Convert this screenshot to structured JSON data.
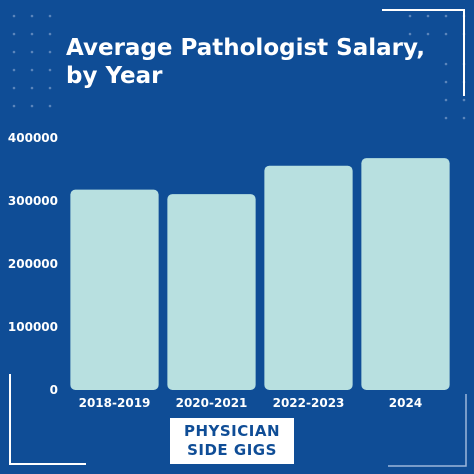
{
  "title": "Average Pathologist Salary, by Year",
  "logo": {
    "line1": "PHYSICIAN",
    "line2": "SIDE GIGS"
  },
  "colors": {
    "background": "#0f4d96",
    "bar": "#b8e0e0",
    "text": "#ffffff",
    "decor": "#6f93c4"
  },
  "chart_data": {
    "type": "bar",
    "title": "Average Pathologist Salary, by Year",
    "categories": [
      "2018-2019",
      "2020-2021",
      "2022-2023",
      "2024"
    ],
    "values": [
      318000,
      311000,
      356000,
      368000
    ],
    "ylim": [
      0,
      400000
    ],
    "yticks": [
      0,
      100000,
      200000,
      300000,
      400000
    ],
    "ytick_labels": [
      "0",
      "100000",
      "200000",
      "300000",
      "400000"
    ],
    "xlabel": "",
    "ylabel": "",
    "grid": false,
    "legend": "none"
  }
}
